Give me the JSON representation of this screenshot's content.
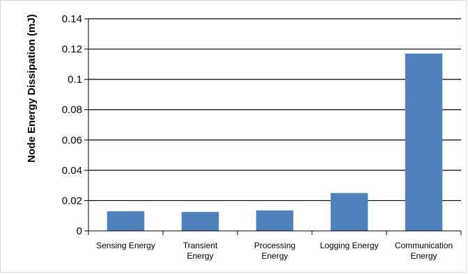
{
  "chart_data": {
    "type": "bar",
    "title": "",
    "xlabel": "",
    "ylabel": "Node Energy Dissipation (mJ)",
    "ylim": [
      0,
      0.14
    ],
    "yticks": [
      "0",
      "0.02",
      "0.04",
      "0.06",
      "0.08",
      "0.1",
      "0.12",
      "0.14"
    ],
    "categories": [
      [
        "Sensing Energy"
      ],
      [
        "Transient",
        "Energy"
      ],
      [
        "Processing",
        "Energy"
      ],
      [
        "Logging Energy"
      ],
      [
        "Communication",
        "Energy"
      ]
    ],
    "values": [
      0.013,
      0.0125,
      0.0135,
      0.025,
      0.117
    ],
    "grid": true,
    "bar_color": "#4f81bd"
  }
}
